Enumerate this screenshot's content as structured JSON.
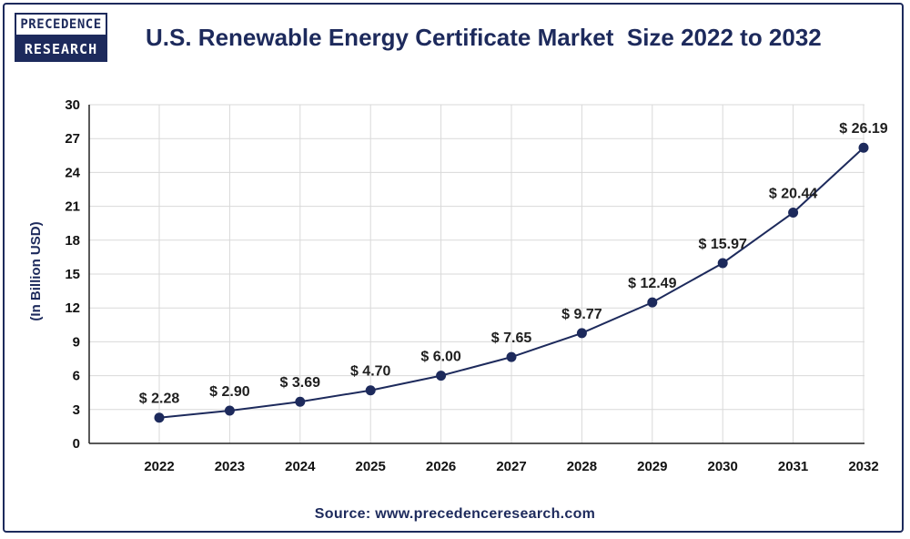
{
  "logo": {
    "line1": "PRECEDENCE",
    "line2": "RESEARCH"
  },
  "source": "Source: www.precedenceresearch.com",
  "colors": {
    "line": "#1d2a5c",
    "marker": "#1d2a5c",
    "text": "#1d2a5c"
  },
  "chart_data": {
    "type": "line",
    "title": "U.S. Renewable Energy Certificate Market  Size 2022 to 2032",
    "xlabel": "",
    "ylabel": "(In Billion USD)",
    "categories": [
      "2022",
      "2023",
      "2024",
      "2025",
      "2026",
      "2027",
      "2028",
      "2029",
      "2030",
      "2031",
      "2032"
    ],
    "values": [
      2.28,
      2.9,
      3.69,
      4.7,
      6.0,
      7.65,
      9.77,
      12.49,
      15.97,
      20.44,
      26.19
    ],
    "labels": [
      "$ 2.28",
      "$ 2.90",
      "$ 3.69",
      "$ 4.70",
      "$ 6.00",
      "$ 7.65",
      "$ 9.77",
      "$ 12.49",
      "$ 15.97",
      "$ 20.44",
      "$ 26.19"
    ],
    "yticks": [
      0,
      3,
      6,
      9,
      12,
      15,
      18,
      21,
      24,
      27,
      30
    ],
    "ylim": [
      0,
      30
    ],
    "grid": true
  }
}
